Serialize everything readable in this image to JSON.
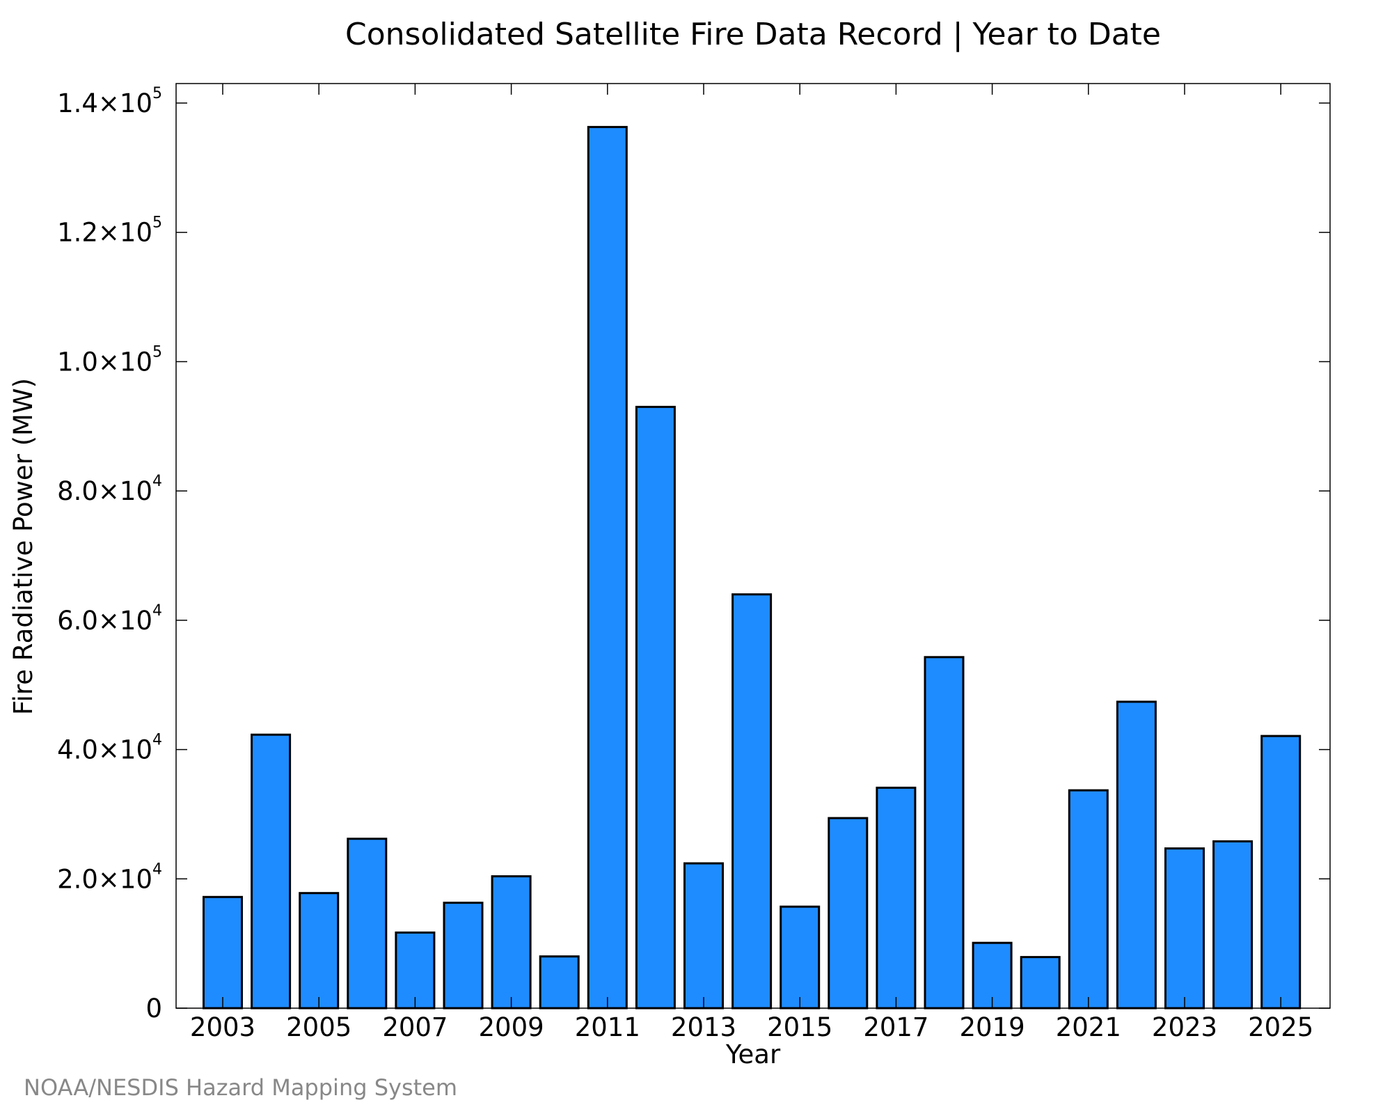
{
  "chart_data": {
    "type": "bar",
    "title": "Consolidated Satellite Fire Data Record | Year to Date",
    "xlabel": "Year",
    "ylabel": "Fire Radiative Power (MW)",
    "categories": [
      "2003",
      "2004",
      "2005",
      "2006",
      "2007",
      "2008",
      "2009",
      "2010",
      "2011",
      "2012",
      "2013",
      "2014",
      "2015",
      "2016",
      "2017",
      "2018",
      "2019",
      "2020",
      "2021",
      "2022",
      "2023",
      "2024",
      "2025"
    ],
    "values": [
      17200,
      42300,
      17800,
      26200,
      11700,
      16300,
      20400,
      8000,
      136300,
      93000,
      22400,
      64000,
      15700,
      29400,
      34100,
      54300,
      10100,
      7900,
      33700,
      47400,
      24700,
      25800,
      42100
    ],
    "ylim": [
      0,
      140000
    ],
    "y_ticks": [
      {
        "value": 0,
        "mantissa": "0",
        "exponent": ""
      },
      {
        "value": 20000,
        "mantissa": "2.0×10",
        "exponent": "4"
      },
      {
        "value": 40000,
        "mantissa": "4.0×10",
        "exponent": "4"
      },
      {
        "value": 60000,
        "mantissa": "6.0×10",
        "exponent": "4"
      },
      {
        "value": 80000,
        "mantissa": "8.0×10",
        "exponent": "4"
      },
      {
        "value": 100000,
        "mantissa": "1.0×10",
        "exponent": "5"
      },
      {
        "value": 120000,
        "mantissa": "1.2×10",
        "exponent": "5"
      },
      {
        "value": 140000,
        "mantissa": "1.4×10",
        "exponent": "5"
      }
    ],
    "x_tick_labels": [
      "2003",
      "2005",
      "2007",
      "2009",
      "2011",
      "2013",
      "2015",
      "2017",
      "2019",
      "2021",
      "2023",
      "2025"
    ],
    "bar_color": "#1E8CFF",
    "bar_edge_color": "#000000",
    "grid": false,
    "legend": "none"
  },
  "credit": "NOAA/NESDIS Hazard Mapping System"
}
